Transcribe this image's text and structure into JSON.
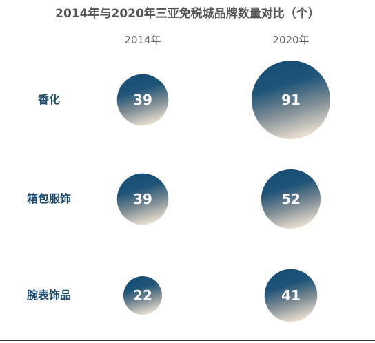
{
  "chart_data": {
    "type": "bubble",
    "title": "2014年与2020年三亚免税城品牌数量对比（个）",
    "columns": [
      "2014年",
      "2020年"
    ],
    "rows": [
      "香化",
      "箱包服饰",
      "腕表饰品"
    ],
    "series": [
      {
        "name": "2014年",
        "values": [
          39,
          39,
          22
        ]
      },
      {
        "name": "2020年",
        "values": [
          91,
          52,
          41
        ]
      }
    ],
    "colors": {
      "gradient_top": "#174e76",
      "gradient_bottom": "#f3e6d6",
      "row_label": "#1b4a6e",
      "value_text": "#ffffff"
    }
  }
}
